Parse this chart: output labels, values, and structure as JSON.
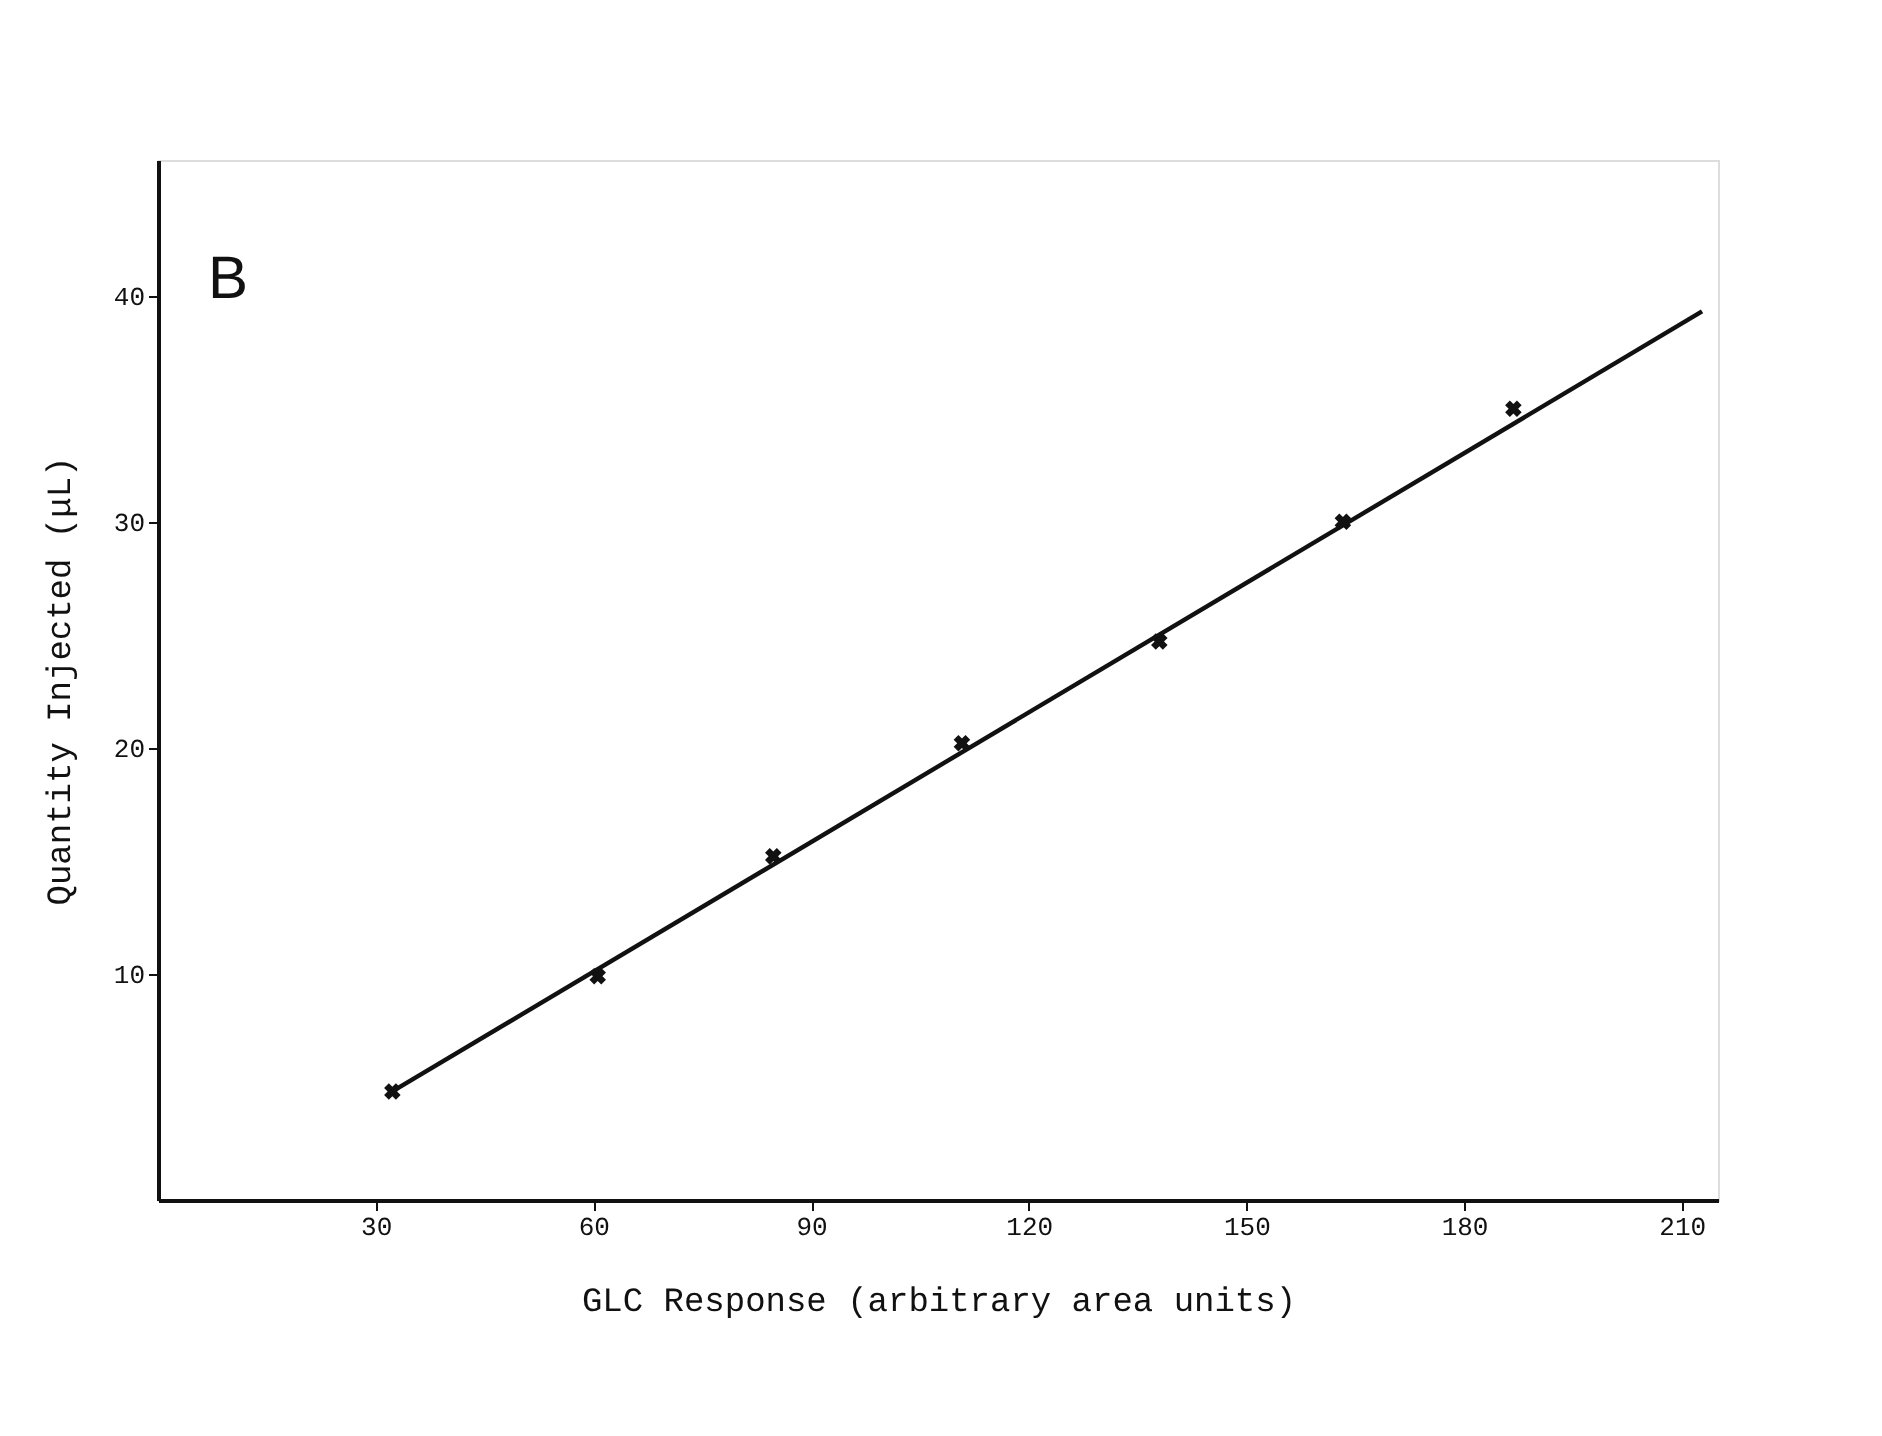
{
  "chart_data": {
    "type": "scatter",
    "xlabel": "GLC Response (arbitrary area units)",
    "ylabel": "Quantity Injected (μL)",
    "annotations": [
      "B"
    ],
    "xlim": [
      0,
      215
    ],
    "ylim": [
      0,
      46
    ],
    "xticks": [
      30,
      60,
      90,
      120,
      150,
      180,
      210
    ],
    "yticks": [
      10,
      20,
      30,
      40
    ],
    "grid": false,
    "marker": "cross",
    "series": [
      {
        "color": "#111111",
        "x": [
          32.3,
          60.6,
          84.8,
          110.8,
          138.0,
          163.3,
          186.8
        ],
        "values": [
          4.8,
          9.9,
          15.2,
          20.2,
          24.7,
          30.0,
          35.0
        ]
      },
      {
        "type": "line",
        "color": "#111111",
        "line_style": "solid",
        "marker": "none",
        "x": [
          32.3,
          212.8
        ],
        "values": [
          4.8,
          39.3
        ]
      }
    ]
  }
}
